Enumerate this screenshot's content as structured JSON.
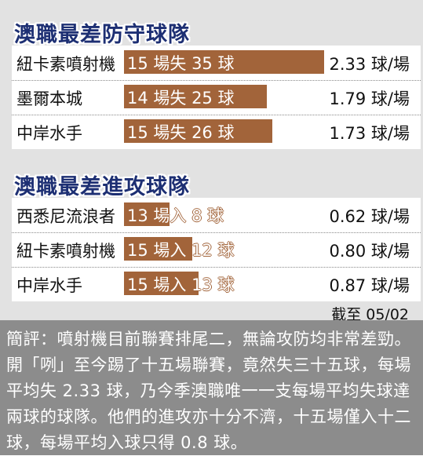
{
  "chart_data": [
    {
      "type": "bar",
      "title": "澳職最差防守球隊",
      "max_value": 35,
      "rows": [
        {
          "team": "紐卡素噴射機",
          "matches": 15,
          "value": 35,
          "bar_label": "15 場失 35 球",
          "rate": "2.33 球/場"
        },
        {
          "team": "墨爾本城",
          "matches": 14,
          "value": 25,
          "bar_label": "14 場失 25 球",
          "rate": "1.79 球/場"
        },
        {
          "team": "中岸水手",
          "matches": 15,
          "value": 26,
          "bar_label": "15 場失 26 球",
          "rate": "1.73 球/場"
        }
      ]
    },
    {
      "type": "bar",
      "title": "澳職最差進攻球隊",
      "max_value": 35,
      "rows": [
        {
          "team": "西悉尼流浪者",
          "matches": 13,
          "value": 8,
          "bar_label": "13 場入 8 球",
          "rate": "0.62 球/場"
        },
        {
          "team": "紐卡素噴射機",
          "matches": 15,
          "value": 12,
          "bar_label": "15 場入 12 球",
          "rate": "0.80 球/場"
        },
        {
          "team": "中岸水手",
          "matches": 15,
          "value": 13,
          "bar_label": "15 場入 13 球",
          "rate": "0.87 球/場"
        }
      ]
    }
  ],
  "date_note": "截至 05/02",
  "comment": "簡評：噴射機目前聯賽排尾二，無論攻防均非常差勁。開「咧」至今踢了十五場聯賽，竟然失三十五球，每場平均失 2.33 球，乃今季澳職唯一一支每場平均失球達兩球的球隊。他們的進攻亦十分不濟，十五場僅入十二球，每場平均入球只得 0.8 球。",
  "colors": {
    "bar": "#a2643a",
    "title": "#1d2f73",
    "panel": "#e2e2e2",
    "comment_bg": "#8c8c8c"
  }
}
